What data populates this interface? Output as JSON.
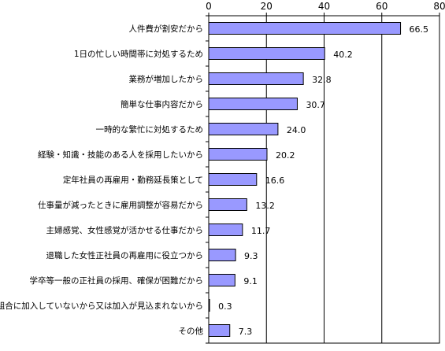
{
  "chart_data": {
    "type": "bar",
    "orientation": "horizontal",
    "title": "",
    "xlabel": "",
    "ylabel": "",
    "xlim": [
      0,
      80
    ],
    "x_ticks": [
      0,
      20,
      40,
      60,
      80
    ],
    "x_axis_position": "top",
    "grid": true,
    "legend": "none",
    "bar_color": "#9999ff",
    "bar_edge_color": "#000000",
    "categories": [
      "人件費が割安だから",
      "1日の忙しい時間帯に対処するため",
      "業務が増加したから",
      "簡単な仕事内容だから",
      "一時的な繁忙に対処するため",
      "経験・知識・技能のある人を採用したいから",
      "定年社員の再雇用・勤務延長策として",
      "仕事量が減ったときに雇用調整が容易だから",
      "主婦感覚、女性感覚が活かせる仕事だから",
      "退職した女性正社員の再雇用に役立つから",
      "学卒等一般の正社員の採用、確保が困難だから",
      "労働組合に加入していないから又は加入が見込まれないから",
      "その他"
    ],
    "values": [
      66.5,
      40.2,
      32.8,
      30.7,
      24.0,
      20.2,
      16.6,
      13.2,
      11.7,
      9.3,
      9.1,
      0.3,
      7.3
    ],
    "value_labels": [
      "66.5",
      "40.2",
      "32.8",
      "30.7",
      "24.0",
      "20.2",
      "16.6",
      "13.2",
      "11.7",
      "9.3",
      "9.1",
      "0.3",
      "7.3"
    ]
  }
}
